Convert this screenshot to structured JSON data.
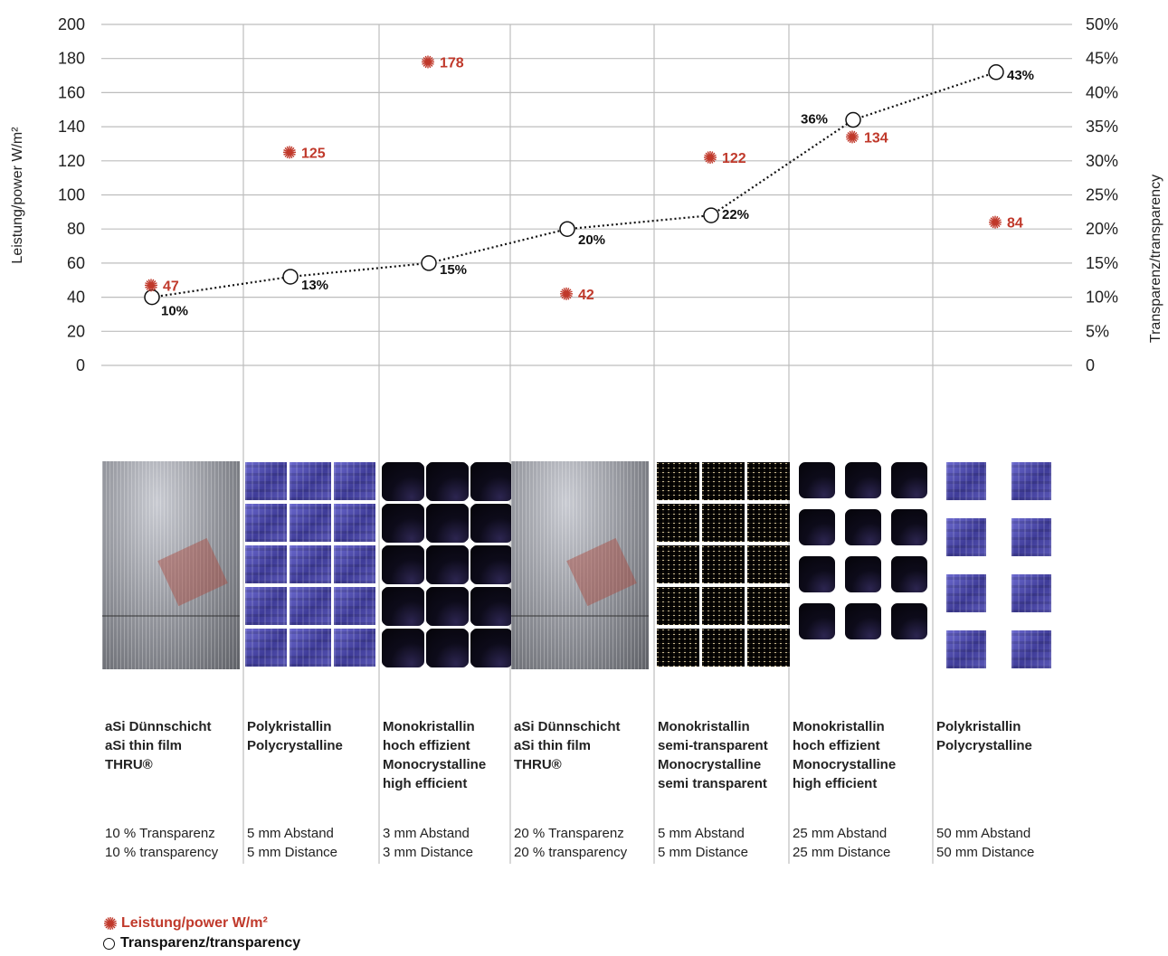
{
  "chart_data": {
    "type": "scatter",
    "categories": [
      "aSi Dünnschicht aSi thin film THRU®",
      "Polykristallin Polycrystalline",
      "Monokristallin hoch effizient Monocrystalline high efficient",
      "aSi Dünnschicht aSi thin film THRU®",
      "Monokristallin semi-transparent Monocrystalline semi transparent",
      "Monokristallin hoch effizient Monocrystalline high efficient",
      "Polykristallin Polycrystalline"
    ],
    "series": [
      {
        "name": "Leistung/power W/m²",
        "axis": "left",
        "marker": "asterisk",
        "color": "#c0392b",
        "values": [
          47,
          125,
          178,
          42,
          122,
          134,
          84
        ]
      },
      {
        "name": "Transparenz/transparency",
        "axis": "right",
        "marker": "open-circle",
        "line": "dotted",
        "color": "#111111",
        "values": [
          10,
          13,
          15,
          20,
          22,
          36,
          43
        ]
      }
    ],
    "ylabel_left": "Leistung/power W/m²",
    "ylabel_right": "Transparenz/transparency",
    "ylim_left": [
      0,
      200
    ],
    "ylim_right": [
      0,
      50
    ],
    "yticks_left": [
      "0",
      "20",
      "40",
      "60",
      "80",
      "100",
      "120",
      "140",
      "160",
      "180",
      "200"
    ],
    "yticks_right": [
      "0",
      "5%",
      "10%",
      "15%",
      "20%",
      "25%",
      "30%",
      "35%",
      "40%",
      "45%",
      "50%"
    ],
    "power_labels": [
      "47",
      "125",
      "178",
      "42",
      "122",
      "134",
      "84"
    ],
    "transparency_labels": [
      "10%",
      "13%",
      "15%",
      "20%",
      "22%",
      "36%",
      "43%"
    ],
    "grid": true,
    "legend_position": "bottom-left"
  },
  "modules": [
    {
      "name": "aSi Dünnschicht\naSi thin film\nTHRU®",
      "spec": "10 % Transparenz\n10 % transparency",
      "texture": "asi"
    },
    {
      "name": "Polykristallin\nPolycrystalline",
      "spec": "5 mm Abstand\n5 mm Distance",
      "texture": "poly-dense"
    },
    {
      "name": "Monokristallin\nhoch effizient\nMonocrystalline\nhigh efficient",
      "spec": "3 mm Abstand\n3 mm Distance",
      "texture": "mono-dense"
    },
    {
      "name": "aSi Dünnschicht\naSi thin film\nTHRU®",
      "spec": "20 % Transparenz\n20 % transparency",
      "texture": "asi"
    },
    {
      "name": "Monokristallin\nsemi-transparent\nMonocrystalline\nsemi transparent",
      "spec": "5 mm Abstand\n5 mm Distance",
      "texture": "mono-semi"
    },
    {
      "name": "Monokristallin\nhoch effizient\nMonocrystalline\nhigh efficient",
      "spec": "25 mm Abstand\n25 mm Distance",
      "texture": "mono-sparse"
    },
    {
      "name": "Polykristallin\nPolycrystalline",
      "spec": "50 mm Abstand\n50 mm Distance",
      "texture": "poly-sparse"
    }
  ],
  "legend": {
    "power": "Leistung/power W/m²",
    "transparency": "Transparenz/transparency"
  },
  "colors": {
    "power": "#c0392b",
    "transparency": "#111111",
    "grid": "#bdbdbd",
    "poly": "#5a55b0",
    "mono": "#0d0b1a",
    "asi": "#8d8f96"
  }
}
